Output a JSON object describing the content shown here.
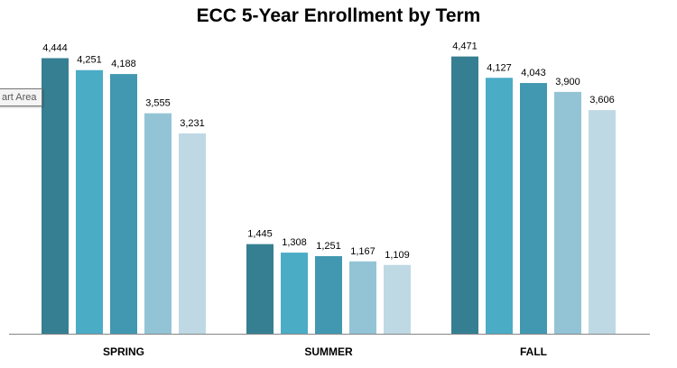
{
  "chart_data": {
    "type": "bar",
    "title": "ECC 5-Year Enrollment by Term",
    "categories": [
      "SPRING",
      "SUMMER",
      "FALL"
    ],
    "series": [
      {
        "values": [
          4444,
          1445,
          4471
        ],
        "labels": [
          "4,444",
          "1,445",
          "4,471"
        ],
        "color": "#367f92"
      },
      {
        "values": [
          4251,
          1308,
          4127
        ],
        "labels": [
          "4,251",
          "1,308",
          "4,127"
        ],
        "color": "#4bacc6"
      },
      {
        "values": [
          4188,
          1251,
          4043
        ],
        "labels": [
          "4,188",
          "1,251",
          "4,043"
        ],
        "color": "#4198b0"
      },
      {
        "values": [
          3555,
          1167,
          3900
        ],
        "labels": [
          "3,555",
          "1,167",
          "3,900"
        ],
        "color": "#93c4d5"
      },
      {
        "values": [
          3231,
          1109,
          3606
        ],
        "labels": [
          "3,231",
          "1,109",
          "3,606"
        ],
        "color": "#bed9e4"
      }
    ],
    "ylim": [
      0,
      4800
    ],
    "grid": false,
    "legend": "none"
  },
  "tooltip": {
    "text": "art Area"
  }
}
